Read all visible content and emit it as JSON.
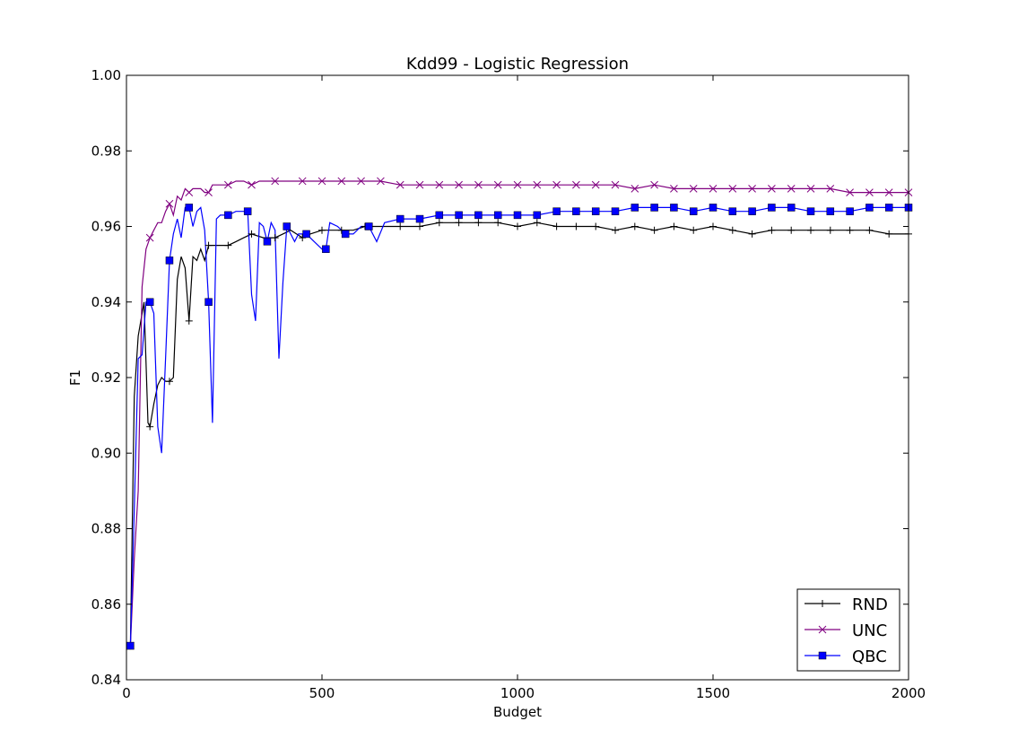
{
  "chart_data": {
    "type": "line",
    "title": "Kdd99 - Logistic Regression",
    "xlabel": "Budget",
    "ylabel": "F1",
    "xlim": [
      0,
      2000
    ],
    "ylim": [
      0.84,
      1.0
    ],
    "xticks": [
      0,
      500,
      1000,
      1500,
      2000
    ],
    "xtick_labels": [
      "0",
      "500",
      "1000",
      "1500",
      "2000"
    ],
    "yticks": [
      0.84,
      0.86,
      0.88,
      0.9,
      0.92,
      0.94,
      0.96,
      0.98,
      1.0
    ],
    "ytick_labels": [
      "0.84",
      "0.86",
      "0.88",
      "0.90",
      "0.92",
      "0.94",
      "0.96",
      "0.98",
      "1.00"
    ],
    "grid": false,
    "legend_position": "bottom-right",
    "series": [
      {
        "name": "RND",
        "color": "#000000",
        "marker": "plus",
        "x": [
          10,
          20,
          30,
          45,
          55,
          60,
          70,
          80,
          90,
          100,
          110,
          120,
          130,
          140,
          150,
          160,
          170,
          180,
          190,
          200,
          210,
          220,
          230,
          250,
          260,
          280,
          300,
          320,
          350,
          380,
          400,
          420,
          450,
          470,
          500,
          520,
          550,
          580,
          610,
          650,
          700,
          750,
          800,
          850,
          900,
          950,
          1000,
          1050,
          1100,
          1150,
          1200,
          1250,
          1300,
          1350,
          1400,
          1450,
          1500,
          1550,
          1600,
          1650,
          1700,
          1750,
          1800,
          1850,
          1900,
          1950,
          2000
        ],
        "y": [
          0.849,
          0.915,
          0.931,
          0.94,
          0.908,
          0.907,
          0.913,
          0.918,
          0.92,
          0.919,
          0.919,
          0.92,
          0.946,
          0.952,
          0.949,
          0.935,
          0.952,
          0.951,
          0.954,
          0.951,
          0.955,
          0.955,
          0.955,
          0.955,
          0.955,
          0.956,
          0.957,
          0.958,
          0.957,
          0.957,
          0.958,
          0.959,
          0.957,
          0.958,
          0.959,
          0.959,
          0.959,
          0.959,
          0.96,
          0.96,
          0.96,
          0.96,
          0.961,
          0.961,
          0.961,
          0.961,
          0.96,
          0.961,
          0.96,
          0.96,
          0.96,
          0.959,
          0.96,
          0.959,
          0.96,
          0.959,
          0.96,
          0.959,
          0.958,
          0.959,
          0.959,
          0.959,
          0.959,
          0.959,
          0.959,
          0.958,
          0.958
        ]
      },
      {
        "name": "UNC",
        "color": "#800080",
        "marker": "x",
        "x": [
          10,
          20,
          30,
          40,
          50,
          60,
          70,
          80,
          90,
          100,
          110,
          120,
          130,
          140,
          150,
          160,
          170,
          180,
          190,
          200,
          210,
          220,
          240,
          260,
          280,
          300,
          320,
          340,
          360,
          380,
          400,
          420,
          450,
          500,
          550,
          600,
          650,
          700,
          750,
          800,
          850,
          900,
          950,
          1000,
          1050,
          1100,
          1150,
          1200,
          1250,
          1300,
          1350,
          1400,
          1450,
          1500,
          1550,
          1600,
          1650,
          1700,
          1750,
          1800,
          1850,
          1900,
          1950,
          2000
        ],
        "y": [
          0.849,
          0.872,
          0.89,
          0.944,
          0.954,
          0.957,
          0.959,
          0.961,
          0.961,
          0.964,
          0.966,
          0.963,
          0.968,
          0.967,
          0.97,
          0.969,
          0.97,
          0.97,
          0.97,
          0.969,
          0.969,
          0.971,
          0.971,
          0.971,
          0.972,
          0.972,
          0.971,
          0.972,
          0.972,
          0.972,
          0.972,
          0.972,
          0.972,
          0.972,
          0.972,
          0.972,
          0.972,
          0.971,
          0.971,
          0.971,
          0.971,
          0.971,
          0.971,
          0.971,
          0.971,
          0.971,
          0.971,
          0.971,
          0.971,
          0.97,
          0.971,
          0.97,
          0.97,
          0.97,
          0.97,
          0.97,
          0.97,
          0.97,
          0.97,
          0.97,
          0.969,
          0.969,
          0.969,
          0.969
        ]
      },
      {
        "name": "QBC",
        "color": "#0000ff",
        "marker": "square",
        "x": [
          10,
          20,
          30,
          40,
          50,
          60,
          70,
          80,
          90,
          100,
          110,
          120,
          130,
          140,
          150,
          160,
          170,
          180,
          190,
          200,
          210,
          220,
          230,
          240,
          260,
          280,
          300,
          310,
          320,
          330,
          340,
          350,
          360,
          370,
          380,
          390,
          400,
          410,
          420,
          430,
          440,
          460,
          480,
          500,
          510,
          520,
          540,
          560,
          580,
          600,
          620,
          640,
          660,
          700,
          750,
          800,
          850,
          900,
          950,
          1000,
          1050,
          1100,
          1150,
          1200,
          1250,
          1300,
          1350,
          1400,
          1450,
          1500,
          1550,
          1600,
          1650,
          1700,
          1750,
          1800,
          1850,
          1900,
          1950,
          2000
        ],
        "y": [
          0.849,
          0.885,
          0.925,
          0.926,
          0.94,
          0.94,
          0.937,
          0.907,
          0.9,
          0.925,
          0.951,
          0.958,
          0.962,
          0.957,
          0.965,
          0.965,
          0.96,
          0.964,
          0.965,
          0.959,
          0.94,
          0.908,
          0.962,
          0.963,
          0.963,
          0.964,
          0.964,
          0.964,
          0.942,
          0.935,
          0.961,
          0.96,
          0.956,
          0.961,
          0.959,
          0.925,
          0.945,
          0.96,
          0.958,
          0.956,
          0.958,
          0.958,
          0.956,
          0.954,
          0.954,
          0.961,
          0.96,
          0.958,
          0.958,
          0.96,
          0.96,
          0.956,
          0.961,
          0.962,
          0.962,
          0.963,
          0.963,
          0.963,
          0.963,
          0.963,
          0.963,
          0.964,
          0.964,
          0.964,
          0.964,
          0.965,
          0.965,
          0.965,
          0.964,
          0.965,
          0.964,
          0.964,
          0.965,
          0.965,
          0.964,
          0.964,
          0.964,
          0.965,
          0.965,
          0.965
        ]
      }
    ]
  }
}
